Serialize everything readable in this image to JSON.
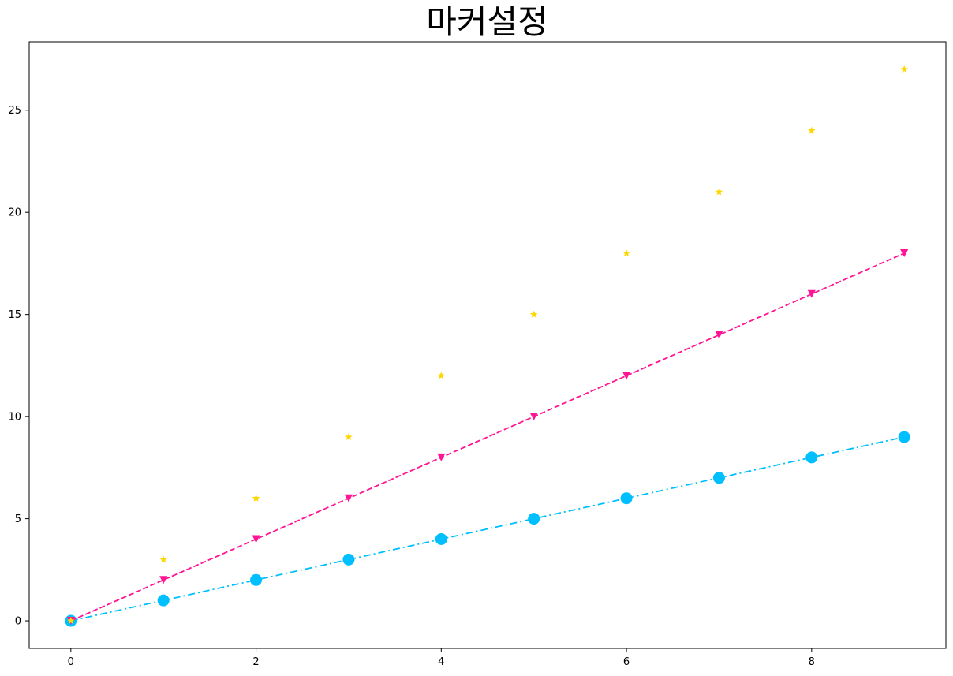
{
  "chart_data": {
    "type": "line",
    "title": "마커설정",
    "xlabel": "",
    "ylabel": "",
    "x": [
      0,
      1,
      2,
      3,
      4,
      5,
      6,
      7,
      8,
      9
    ],
    "xlim": [
      -0.45,
      9.45
    ],
    "ylim": [
      -1.35,
      28.35
    ],
    "xticks": [
      0,
      2,
      4,
      6,
      8
    ],
    "yticks": [
      0,
      5,
      10,
      15,
      20,
      25
    ],
    "grid": false,
    "series": [
      {
        "values": [
          0,
          1,
          2,
          3,
          4,
          5,
          6,
          7,
          8,
          9
        ],
        "color": "#00bfff",
        "linestyle": "dashdot",
        "marker": "circle"
      },
      {
        "values": [
          0,
          2,
          4,
          6,
          8,
          10,
          12,
          14,
          16,
          18
        ],
        "color": "#ff1493",
        "linestyle": "dashed",
        "marker": "triangle-down"
      },
      {
        "values": [
          0,
          3,
          6,
          9,
          12,
          15,
          18,
          21,
          24,
          27
        ],
        "color": "#ffd700",
        "linestyle": "none",
        "marker": "star"
      }
    ]
  }
}
